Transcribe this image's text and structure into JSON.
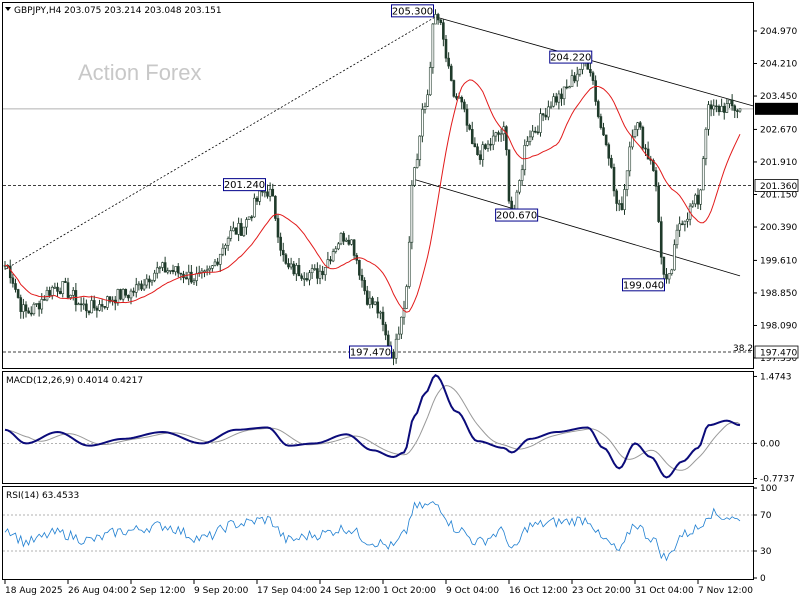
{
  "chart_data": {
    "type": "candlestick",
    "title": "GBPJPY,H4  203.075 203.214 203.048 203.151",
    "watermark": "Action Forex",
    "x_ticks": [
      "18 Aug 2025",
      "26 Aug 04:00",
      "2 Sep 12:00",
      "9 Sep 20:00",
      "17 Sep 04:00",
      "24 Sep 12:00",
      "1 Oct 20:00",
      "9 Oct 04:00",
      "16 Oct 12:00",
      "23 Oct 20:00",
      "31 Oct 04:00",
      "7 Nov 12:00"
    ],
    "y_ticks": [
      "204.970",
      "204.210",
      "203.450",
      "202.670",
      "201.910",
      "201.150",
      "200.390",
      "199.610",
      "198.850",
      "198.090",
      "197.330"
    ],
    "ylim": [
      197.12,
      205.6
    ],
    "current_price": "203.151",
    "level_201_360": "201.360",
    "level_197_470": "197.470",
    "fib_label": "38.2",
    "annotations": [
      {
        "text": "205.300",
        "price": 205.3,
        "idx": 164
      },
      {
        "text": "204.220",
        "price": 204.22,
        "idx": 222
      },
      {
        "text": "201.240",
        "price": 201.24,
        "idx": 100
      },
      {
        "text": "200.670",
        "price": 200.67,
        "idx": 193
      },
      {
        "text": "199.040",
        "price": 199.04,
        "idx": 252
      },
      {
        "text": "197.470",
        "price": 197.47,
        "idx": 148
      }
    ],
    "anchors": [
      [
        0,
        199.5
      ],
      [
        8,
        198.4
      ],
      [
        20,
        199.0
      ],
      [
        32,
        198.5
      ],
      [
        45,
        198.8
      ],
      [
        60,
        199.4
      ],
      [
        75,
        199.2
      ],
      [
        88,
        200.3
      ],
      [
        100,
        201.24
      ],
      [
        108,
        199.4
      ],
      [
        118,
        199.3
      ],
      [
        130,
        200.2
      ],
      [
        140,
        198.6
      ],
      [
        148,
        197.47
      ],
      [
        152,
        198.6
      ],
      [
        156,
        201.8
      ],
      [
        160,
        203.2
      ],
      [
        164,
        205.3
      ],
      [
        172,
        203.4
      ],
      [
        180,
        202.1
      ],
      [
        190,
        202.6
      ],
      [
        193,
        200.67
      ],
      [
        200,
        202.6
      ],
      [
        210,
        203.4
      ],
      [
        222,
        204.22
      ],
      [
        228,
        202.6
      ],
      [
        234,
        200.8
      ],
      [
        240,
        202.8
      ],
      [
        246,
        202.0
      ],
      [
        252,
        199.04
      ],
      [
        258,
        200.6
      ],
      [
        264,
        201.0
      ],
      [
        268,
        203.1
      ],
      [
        275,
        203.2
      ],
      [
        280,
        203.151
      ]
    ],
    "candle_count": 281,
    "macd": {
      "label": "MACD(12,26,9) 0.4014 0.4217",
      "y_ticks": [
        "1.4743",
        "0.00",
        "-0.7737"
      ],
      "ylim": [
        -0.85,
        1.55
      ],
      "anchors": [
        [
          0,
          0.3
        ],
        [
          8,
          0.0
        ],
        [
          20,
          0.25
        ],
        [
          32,
          -0.05
        ],
        [
          45,
          0.1
        ],
        [
          60,
          0.25
        ],
        [
          75,
          0.0
        ],
        [
          88,
          0.3
        ],
        [
          100,
          0.35
        ],
        [
          108,
          -0.05
        ],
        [
          118,
          0.0
        ],
        [
          130,
          0.2
        ],
        [
          140,
          -0.15
        ],
        [
          148,
          -0.3
        ],
        [
          152,
          -0.2
        ],
        [
          156,
          0.6
        ],
        [
          160,
          1.1
        ],
        [
          164,
          1.5
        ],
        [
          172,
          0.7
        ],
        [
          180,
          0.05
        ],
        [
          190,
          -0.1
        ],
        [
          193,
          -0.2
        ],
        [
          200,
          0.1
        ],
        [
          210,
          0.25
        ],
        [
          222,
          0.35
        ],
        [
          228,
          -0.1
        ],
        [
          234,
          -0.55
        ],
        [
          240,
          0.0
        ],
        [
          246,
          -0.3
        ],
        [
          252,
          -0.75
        ],
        [
          258,
          -0.4
        ],
        [
          264,
          -0.1
        ],
        [
          268,
          0.4
        ],
        [
          275,
          0.5
        ],
        [
          280,
          0.4014
        ]
      ],
      "signal_last": 0.4217
    },
    "rsi": {
      "label": "RSI(14) 63.4533",
      "y_ticks": [
        "100",
        "70",
        "30",
        "0"
      ],
      "ylim": [
        0,
        100
      ],
      "anchors": [
        [
          0,
          55
        ],
        [
          8,
          40
        ],
        [
          20,
          50
        ],
        [
          32,
          42
        ],
        [
          45,
          52
        ],
        [
          60,
          58
        ],
        [
          75,
          44
        ],
        [
          88,
          60
        ],
        [
          100,
          65
        ],
        [
          108,
          42
        ],
        [
          118,
          48
        ],
        [
          130,
          55
        ],
        [
          140,
          40
        ],
        [
          148,
          35
        ],
        [
          152,
          48
        ],
        [
          156,
          78
        ],
        [
          160,
          80
        ],
        [
          164,
          82
        ],
        [
          172,
          55
        ],
        [
          180,
          40
        ],
        [
          190,
          52
        ],
        [
          193,
          30
        ],
        [
          200,
          58
        ],
        [
          210,
          62
        ],
        [
          222,
          65
        ],
        [
          228,
          42
        ],
        [
          234,
          30
        ],
        [
          240,
          60
        ],
        [
          246,
          45
        ],
        [
          252,
          22
        ],
        [
          258,
          48
        ],
        [
          264,
          55
        ],
        [
          268,
          72
        ],
        [
          275,
          68
        ],
        [
          280,
          63.45
        ]
      ]
    }
  },
  "colors": {
    "bull": "#1f3a2a",
    "bear": "#1f3a2a",
    "ma": "#e21b1b",
    "macd": "#0b0b7a",
    "signal": "#9a9a9a",
    "rsi": "#1f7fd1",
    "trend": "#000000",
    "label_border": "#00008b",
    "current_bg": "#000000"
  }
}
